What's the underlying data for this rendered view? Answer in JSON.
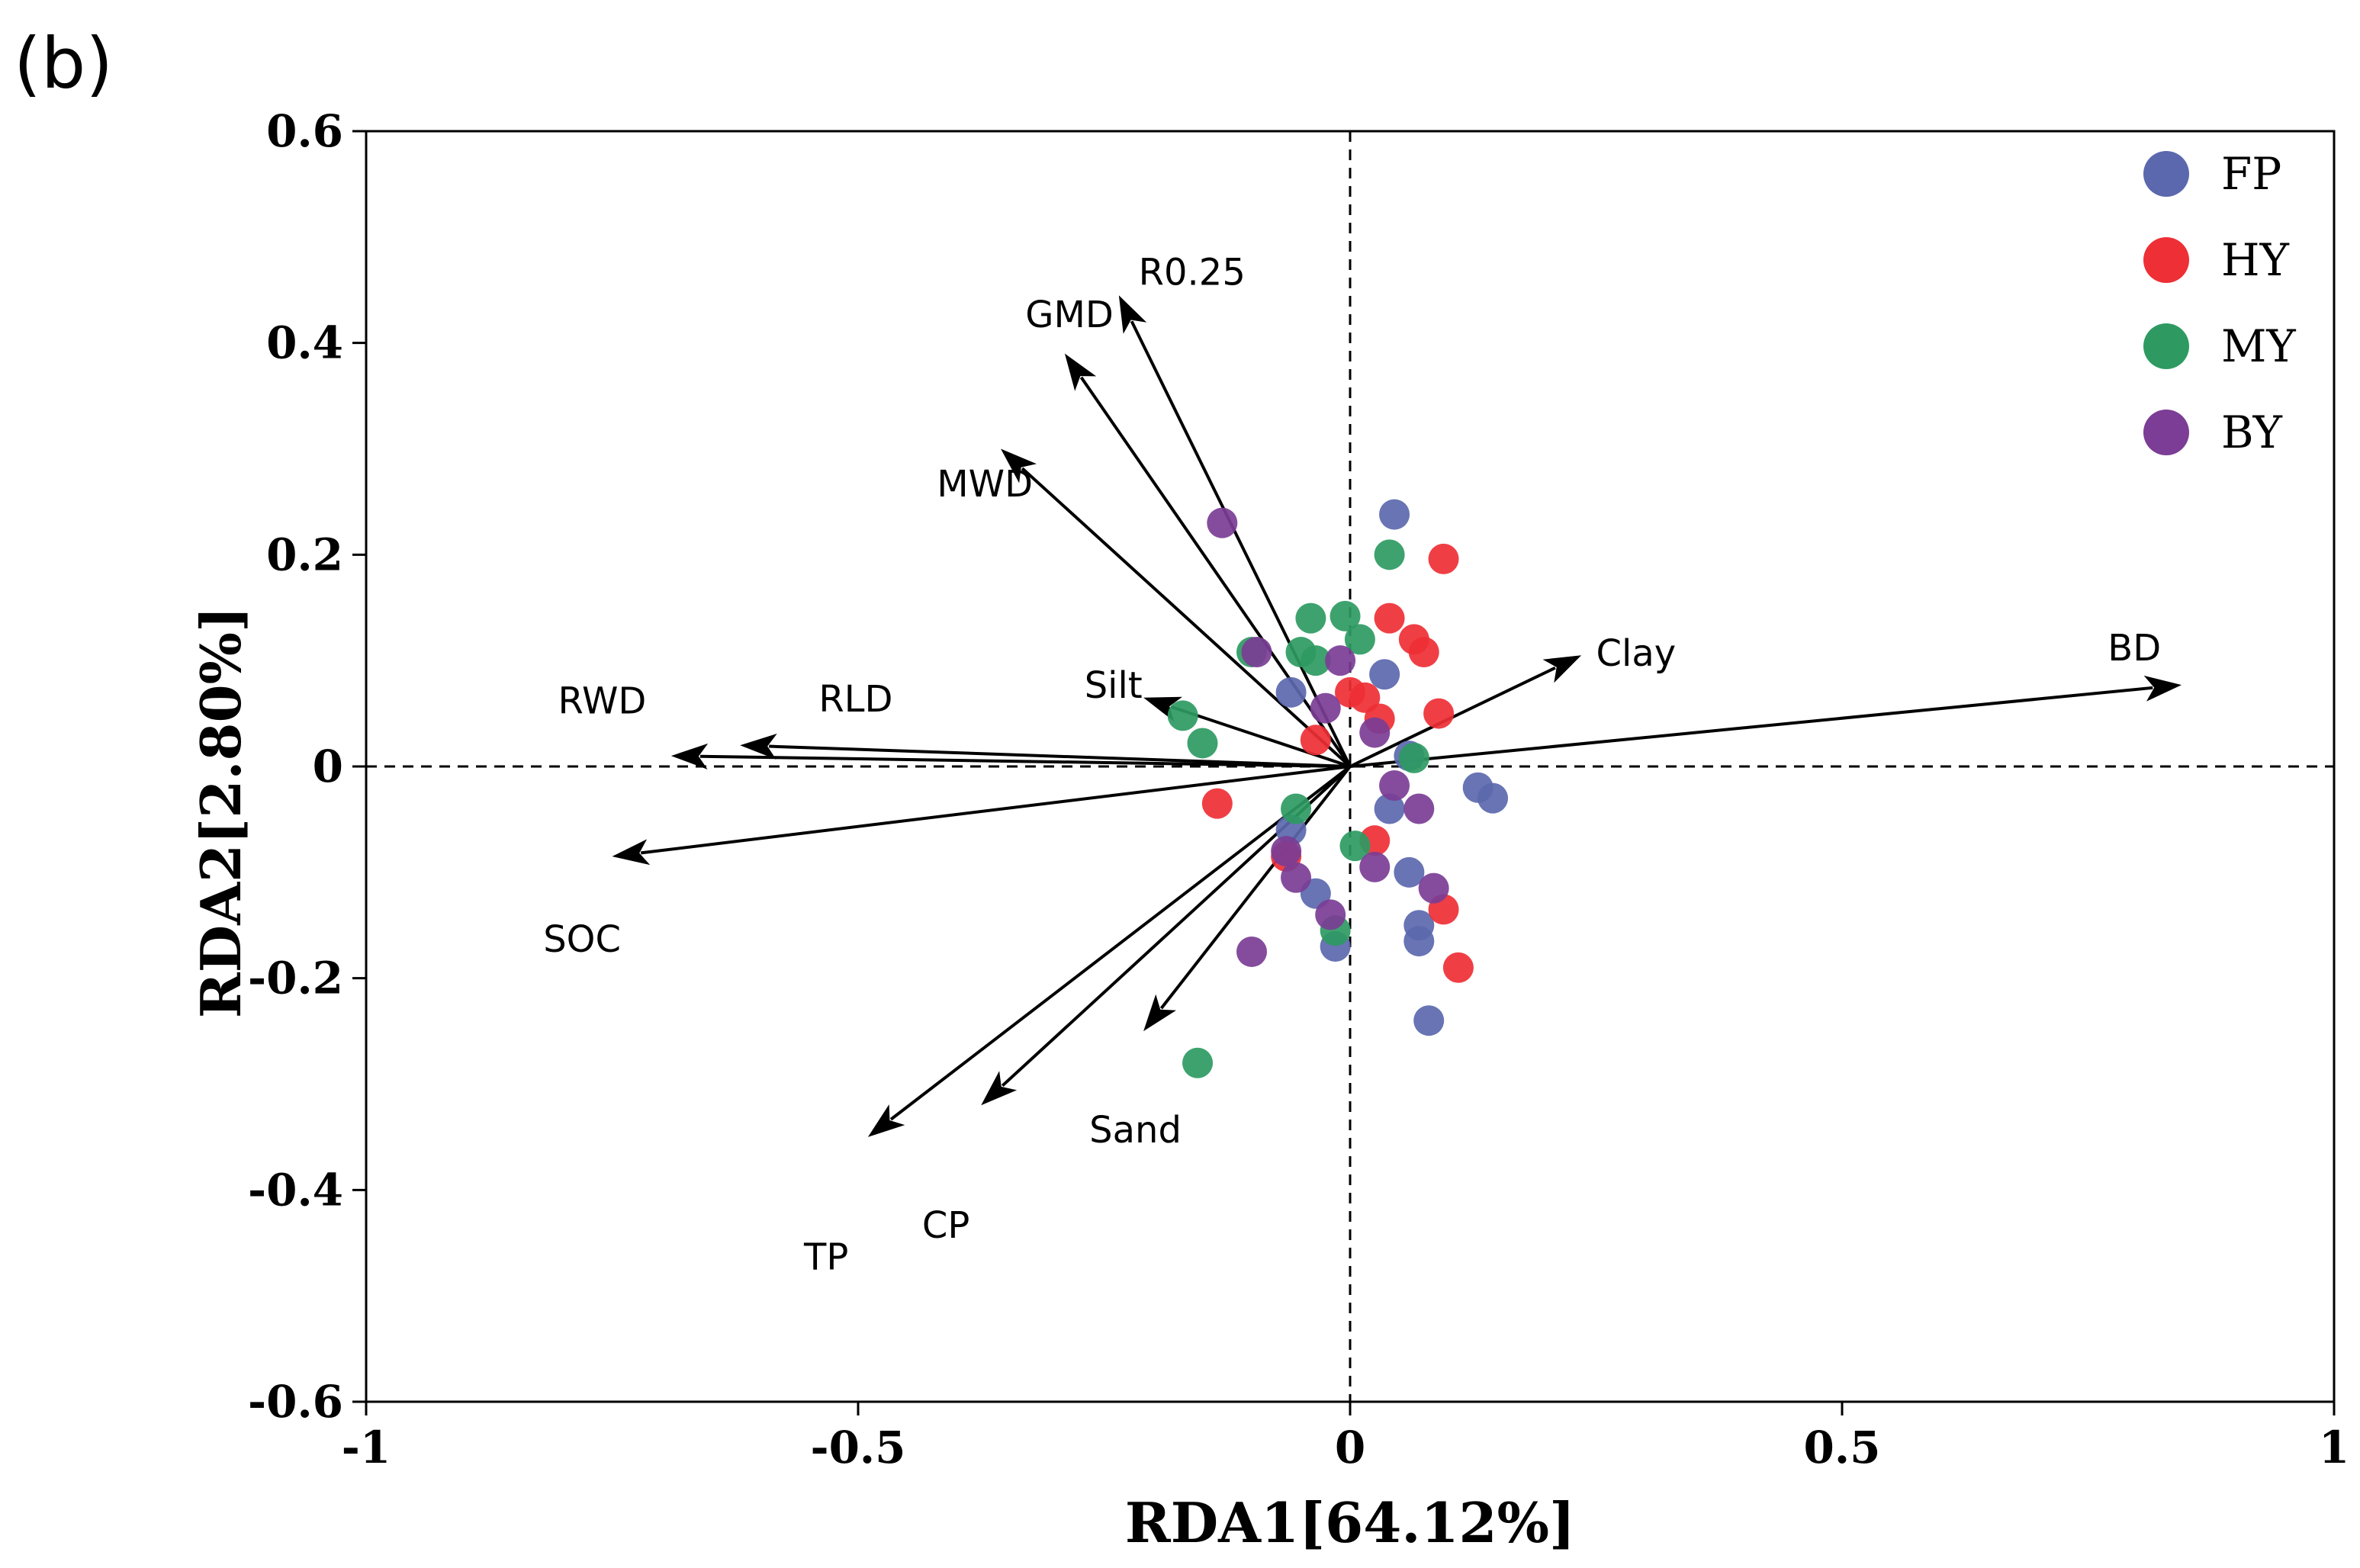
{
  "panel_label": "(b)",
  "chart_data": {
    "type": "scatter",
    "subtype": "RDA biplot",
    "xlabel": "RDA1[64.12%]",
    "ylabel": "RDA2[2.80%]",
    "xlim": [
      -1,
      1
    ],
    "ylim": [
      -0.6,
      0.6
    ],
    "x_ticks": [
      -1,
      -0.5,
      0,
      0.5,
      1
    ],
    "x_tick_labels": [
      "-1",
      "-0.5",
      "0",
      "0.5",
      "1"
    ],
    "y_ticks": [
      -0.6,
      -0.4,
      -0.2,
      0,
      0.2,
      0.4,
      0.6
    ],
    "y_tick_labels": [
      "-0.6",
      "-0.4",
      "-0.2",
      "0",
      "0.2",
      "0.4",
      "0.6"
    ],
    "reference_lines": {
      "x": 0,
      "y": 0,
      "style": "dashed"
    },
    "legend_position": "top-right",
    "arrows": [
      {
        "name": "R0.25",
        "x": -0.235,
        "y": 0.445,
        "label_x": -0.215,
        "label_y": 0.455
      },
      {
        "name": "GMD",
        "x": -0.29,
        "y": 0.39,
        "label_x": -0.33,
        "label_y": 0.415
      },
      {
        "name": "MWD",
        "x": -0.355,
        "y": 0.3,
        "label_x": -0.42,
        "label_y": 0.255
      },
      {
        "name": "Silt",
        "x": -0.21,
        "y": 0.065,
        "label_x": -0.27,
        "label_y": 0.065
      },
      {
        "name": "RLD",
        "x": -0.62,
        "y": 0.02,
        "label_x": -0.54,
        "label_y": 0.052
      },
      {
        "name": "RWD",
        "x": -0.69,
        "y": 0.01,
        "label_x": -0.805,
        "label_y": 0.05
      },
      {
        "name": "SOC",
        "x": -0.75,
        "y": -0.085,
        "label_x": -0.82,
        "label_y": -0.175
      },
      {
        "name": "TP",
        "x": -0.49,
        "y": -0.35,
        "label_x": -0.555,
        "label_y": -0.475
      },
      {
        "name": "CP",
        "x": -0.375,
        "y": -0.32,
        "label_x": -0.435,
        "label_y": -0.445
      },
      {
        "name": "Sand",
        "x": -0.21,
        "y": -0.25,
        "label_x": -0.265,
        "label_y": -0.355
      },
      {
        "name": "Clay",
        "x": 0.235,
        "y": 0.105,
        "label_x": 0.25,
        "label_y": 0.095
      },
      {
        "name": "BD",
        "x": 0.845,
        "y": 0.077,
        "label_x": 0.77,
        "label_y": 0.1
      }
    ],
    "series": [
      {
        "name": "FP",
        "color": "#5b68ad",
        "points": [
          [
            0.045,
            0.238
          ],
          [
            0.035,
            0.087
          ],
          [
            -0.06,
            0.07
          ],
          [
            0.06,
            0.01
          ],
          [
            0.13,
            -0.02
          ],
          [
            0.145,
            -0.03
          ],
          [
            0.04,
            -0.04
          ],
          [
            0.06,
            -0.1
          ],
          [
            0.07,
            -0.15
          ],
          [
            0.07,
            -0.165
          ],
          [
            0.08,
            -0.24
          ],
          [
            -0.035,
            -0.12
          ],
          [
            -0.015,
            -0.17
          ],
          [
            -0.06,
            -0.06
          ]
        ]
      },
      {
        "name": "HY",
        "color": "#ee2f35",
        "points": [
          [
            0.095,
            0.196
          ],
          [
            0.04,
            0.14
          ],
          [
            0.065,
            0.12
          ],
          [
            0.075,
            0.108
          ],
          [
            0.0,
            0.07
          ],
          [
            0.015,
            0.065
          ],
          [
            0.03,
            0.045
          ],
          [
            0.09,
            0.05
          ],
          [
            -0.035,
            0.025
          ],
          [
            -0.135,
            -0.035
          ],
          [
            0.025,
            -0.07
          ],
          [
            -0.065,
            -0.085
          ],
          [
            0.095,
            -0.135
          ],
          [
            0.11,
            -0.19
          ]
        ]
      },
      {
        "name": "MY",
        "color": "#2e9a62",
        "points": [
          [
            0.04,
            0.2
          ],
          [
            -0.04,
            0.14
          ],
          [
            -0.005,
            0.142
          ],
          [
            0.01,
            0.12
          ],
          [
            -0.1,
            0.108
          ],
          [
            -0.05,
            0.108
          ],
          [
            -0.035,
            0.1
          ],
          [
            -0.17,
            0.048
          ],
          [
            -0.15,
            0.022
          ],
          [
            0.065,
            0.008
          ],
          [
            -0.055,
            -0.04
          ],
          [
            0.005,
            -0.075
          ],
          [
            -0.015,
            -0.155
          ],
          [
            -0.155,
            -0.28
          ]
        ]
      },
      {
        "name": "BY",
        "color": "#7b3d95",
        "points": [
          [
            -0.13,
            0.23
          ],
          [
            -0.095,
            0.108
          ],
          [
            -0.01,
            0.1
          ],
          [
            -0.025,
            0.055
          ],
          [
            0.025,
            0.032
          ],
          [
            0.045,
            -0.018
          ],
          [
            0.07,
            -0.04
          ],
          [
            -0.065,
            -0.08
          ],
          [
            -0.055,
            -0.105
          ],
          [
            0.025,
            -0.095
          ],
          [
            0.085,
            -0.115
          ],
          [
            -0.02,
            -0.14
          ],
          [
            -0.1,
            -0.175
          ]
        ]
      }
    ]
  }
}
